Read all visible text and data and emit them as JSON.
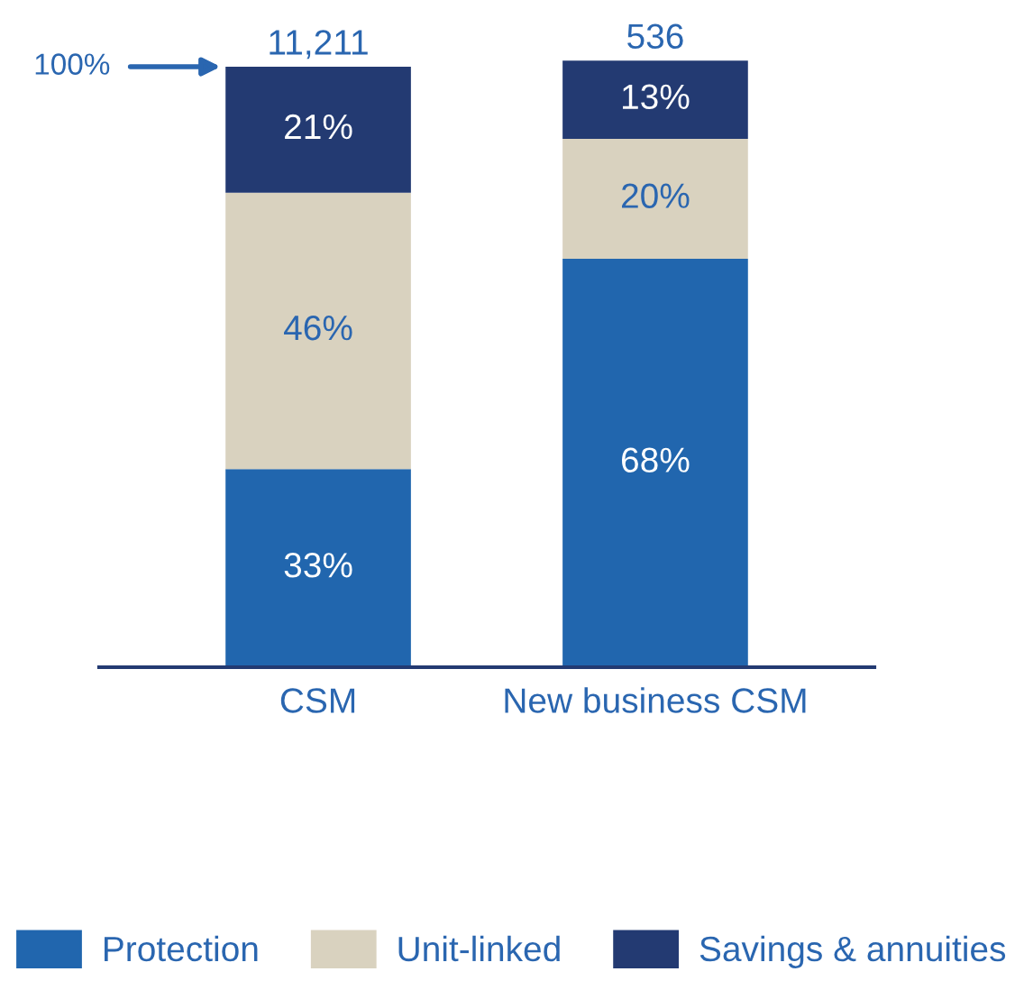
{
  "chart_data": {
    "type": "bar",
    "stacked": true,
    "categories": [
      "CSM",
      "New business CSM"
    ],
    "series": [
      {
        "name": "Protection",
        "color": "#2166ae",
        "values": [
          33,
          68
        ],
        "value_labels": [
          "33%",
          "68%"
        ]
      },
      {
        "name": "Unit-linked",
        "color": "#d9d2bf",
        "values": [
          46,
          20
        ],
        "value_labels": [
          "46%",
          "20%"
        ]
      },
      {
        "name": "Savings & annuities",
        "color": "#233a72",
        "values": [
          21,
          13
        ],
        "value_labels": [
          "21%",
          "13%"
        ]
      }
    ],
    "annotations": [
      "100%",
      {
        "text": "11,211",
        "x": "CSM",
        "y": 100
      },
      {
        "text": "536",
        "x": "New business CSM",
        "y": 101
      }
    ],
    "legend": "bottom",
    "grid": false,
    "tick_labels": "x"
  }
}
